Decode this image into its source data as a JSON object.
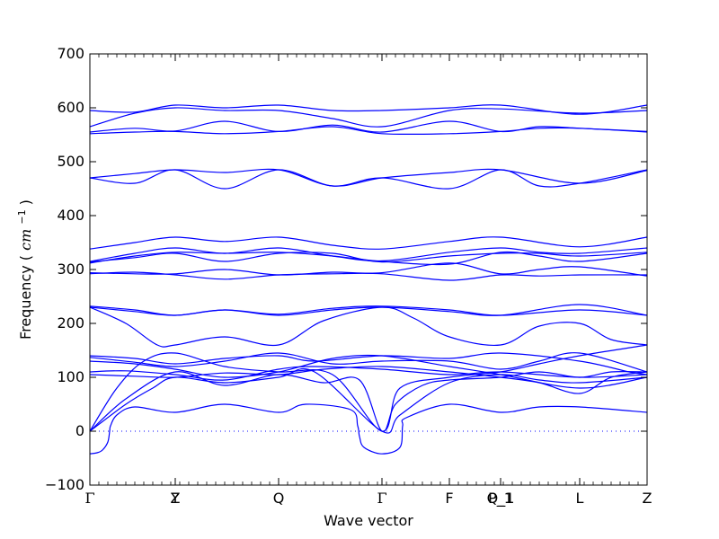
{
  "chart_data": {
    "type": "line",
    "title": "",
    "xlabel": "Wave vector",
    "ylabel": "Frequency",
    "ylabel_unit_base": "cm",
    "ylabel_unit_exp": "−1",
    "ylim": [
      -100,
      700
    ],
    "yticks": [
      -100,
      0,
      100,
      200,
      300,
      400,
      500,
      600,
      700
    ],
    "xlim": [
      0,
      620
    ],
    "high_symmetry_points": [
      {
        "label": "Γ",
        "x": 0
      },
      {
        "label": "Z",
        "x": 95
      },
      {
        "label": "Y",
        "x": 95
      },
      {
        "label": "Q",
        "x": 210
      },
      {
        "label": "Γ",
        "x": 325
      },
      {
        "label": "F",
        "x": 400
      },
      {
        "label": "P_1",
        "x": 457
      },
      {
        "label": "Q_1",
        "x": 457
      },
      {
        "label": "L",
        "x": 545
      },
      {
        "label": "Z",
        "x": 620
      }
    ],
    "zero_line": 0,
    "line_color": "#0000ff",
    "series": [
      {
        "values": [
          [
            0,
            -42
          ],
          [
            8,
            -40
          ],
          [
            14,
            -35
          ],
          [
            20,
            -20
          ],
          [
            22,
            0
          ],
          [
            23,
            10
          ],
          [
            30,
            30
          ],
          [
            50,
            45
          ],
          [
            95,
            35
          ],
          [
            150,
            50
          ],
          [
            210,
            35
          ],
          [
            240,
            50
          ],
          [
            290,
            40
          ],
          [
            298,
            10
          ],
          [
            300,
            -10
          ],
          [
            305,
            -30
          ],
          [
            325,
            -42
          ],
          [
            345,
            -30
          ],
          [
            348,
            10
          ],
          [
            352,
            25
          ],
          [
            400,
            50
          ],
          [
            457,
            35
          ],
          [
            500,
            45
          ],
          [
            545,
            45
          ],
          [
            620,
            35
          ]
        ]
      },
      {
        "values": [
          [
            0,
            0
          ],
          [
            40,
            50
          ],
          [
            70,
            80
          ],
          [
            95,
            100
          ],
          [
            150,
            90
          ],
          [
            210,
            100
          ],
          [
            250,
            110
          ],
          [
            325,
            0
          ],
          [
            345,
            30
          ],
          [
            400,
            90
          ],
          [
            457,
            105
          ],
          [
            500,
            95
          ],
          [
            545,
            90
          ],
          [
            620,
            100
          ]
        ]
      },
      {
        "values": [
          [
            0,
            0
          ],
          [
            40,
            60
          ],
          [
            95,
            110
          ],
          [
            150,
            85
          ],
          [
            210,
            105
          ],
          [
            260,
            90
          ],
          [
            300,
            95
          ],
          [
            325,
            0
          ],
          [
            340,
            50
          ],
          [
            370,
            85
          ],
          [
            400,
            95
          ],
          [
            457,
            100
          ],
          [
            500,
            110
          ],
          [
            545,
            100
          ],
          [
            580,
            110
          ],
          [
            620,
            110
          ]
        ]
      },
      {
        "values": [
          [
            0,
            0
          ],
          [
            30,
            80
          ],
          [
            60,
            130
          ],
          [
            95,
            145
          ],
          [
            150,
            120
          ],
          [
            210,
            110
          ],
          [
            270,
            105
          ],
          [
            325,
            0
          ],
          [
            345,
            80
          ],
          [
            400,
            100
          ],
          [
            457,
            110
          ],
          [
            500,
            125
          ],
          [
            545,
            140
          ],
          [
            620,
            160
          ]
        ]
      },
      {
        "values": [
          [
            0,
            105
          ],
          [
            50,
            102
          ],
          [
            95,
            100
          ],
          [
            150,
            108
          ],
          [
            210,
            105
          ],
          [
            260,
            115
          ],
          [
            325,
            120
          ],
          [
            400,
            110
          ],
          [
            457,
            100
          ],
          [
            500,
            90
          ],
          [
            545,
            70
          ],
          [
            580,
            100
          ],
          [
            620,
            110
          ]
        ]
      },
      {
        "values": [
          [
            0,
            110
          ],
          [
            40,
            112
          ],
          [
            95,
            105
          ],
          [
            150,
            95
          ],
          [
            210,
            115
          ],
          [
            250,
            120
          ],
          [
            325,
            115
          ],
          [
            400,
            105
          ],
          [
            457,
            110
          ],
          [
            545,
            100
          ],
          [
            620,
            105
          ]
        ]
      },
      {
        "values": [
          [
            0,
            130
          ],
          [
            50,
            125
          ],
          [
            95,
            115
          ],
          [
            150,
            100
          ],
          [
            210,
            110
          ],
          [
            270,
            135
          ],
          [
            325,
            140
          ],
          [
            400,
            120
          ],
          [
            457,
            105
          ],
          [
            545,
            80
          ],
          [
            620,
            100
          ]
        ]
      },
      {
        "values": [
          [
            0,
            137
          ],
          [
            50,
            128
          ],
          [
            95,
            120
          ],
          [
            150,
            130
          ],
          [
            210,
            145
          ],
          [
            270,
            125
          ],
          [
            325,
            130
          ],
          [
            400,
            130
          ],
          [
            457,
            115
          ],
          [
            500,
            130
          ],
          [
            545,
            145
          ],
          [
            620,
            110
          ]
        ]
      },
      {
        "values": [
          [
            0,
            140
          ],
          [
            50,
            135
          ],
          [
            95,
            125
          ],
          [
            150,
            135
          ],
          [
            210,
            140
          ],
          [
            250,
            130
          ],
          [
            325,
            140
          ],
          [
            400,
            135
          ],
          [
            457,
            145
          ],
          [
            545,
            130
          ],
          [
            600,
            110
          ],
          [
            620,
            105
          ]
        ]
      },
      {
        "values": [
          [
            0,
            230
          ],
          [
            40,
            200
          ],
          [
            75,
            160
          ],
          [
            95,
            160
          ],
          [
            150,
            175
          ],
          [
            210,
            160
          ],
          [
            260,
            205
          ],
          [
            325,
            230
          ],
          [
            360,
            210
          ],
          [
            400,
            175
          ],
          [
            457,
            160
          ],
          [
            500,
            195
          ],
          [
            545,
            200
          ],
          [
            580,
            170
          ],
          [
            620,
            160
          ]
        ]
      },
      {
        "values": [
          [
            0,
            230
          ],
          [
            50,
            222
          ],
          [
            95,
            215
          ],
          [
            150,
            225
          ],
          [
            210,
            215
          ],
          [
            270,
            225
          ],
          [
            325,
            230
          ],
          [
            400,
            222
          ],
          [
            457,
            215
          ],
          [
            545,
            235
          ],
          [
            620,
            215
          ]
        ]
      },
      {
        "values": [
          [
            0,
            232
          ],
          [
            50,
            225
          ],
          [
            95,
            215
          ],
          [
            150,
            225
          ],
          [
            210,
            217
          ],
          [
            270,
            228
          ],
          [
            325,
            232
          ],
          [
            400,
            225
          ],
          [
            457,
            215
          ],
          [
            545,
            225
          ],
          [
            620,
            215
          ]
        ]
      },
      {
        "values": [
          [
            0,
            292
          ],
          [
            50,
            295
          ],
          [
            95,
            290
          ],
          [
            150,
            282
          ],
          [
            210,
            290
          ],
          [
            270,
            292
          ],
          [
            325,
            292
          ],
          [
            400,
            280
          ],
          [
            457,
            290
          ],
          [
            500,
            288
          ],
          [
            545,
            290
          ],
          [
            620,
            290
          ]
        ]
      },
      {
        "values": [
          [
            0,
            294
          ],
          [
            50,
            292
          ],
          [
            95,
            292
          ],
          [
            150,
            300
          ],
          [
            210,
            290
          ],
          [
            270,
            295
          ],
          [
            325,
            294
          ],
          [
            400,
            312
          ],
          [
            457,
            292
          ],
          [
            500,
            300
          ],
          [
            545,
            305
          ],
          [
            620,
            288
          ]
        ]
      },
      {
        "values": [
          [
            0,
            312
          ],
          [
            50,
            325
          ],
          [
            95,
            332
          ],
          [
            150,
            330
          ],
          [
            210,
            332
          ],
          [
            270,
            325
          ],
          [
            325,
            315
          ],
          [
            400,
            310
          ],
          [
            457,
            332
          ],
          [
            500,
            325
          ],
          [
            545,
            315
          ],
          [
            620,
            330
          ]
        ]
      },
      {
        "values": [
          [
            0,
            314
          ],
          [
            50,
            322
          ],
          [
            95,
            330
          ],
          [
            150,
            315
          ],
          [
            210,
            330
          ],
          [
            270,
            330
          ],
          [
            325,
            314
          ],
          [
            400,
            325
          ],
          [
            457,
            330
          ],
          [
            500,
            330
          ],
          [
            545,
            325
          ],
          [
            620,
            332
          ]
        ]
      },
      {
        "values": [
          [
            0,
            315
          ],
          [
            50,
            330
          ],
          [
            95,
            340
          ],
          [
            150,
            330
          ],
          [
            210,
            340
          ],
          [
            270,
            325
          ],
          [
            325,
            316
          ],
          [
            400,
            332
          ],
          [
            457,
            340
          ],
          [
            500,
            332
          ],
          [
            545,
            330
          ],
          [
            620,
            340
          ]
        ]
      },
      {
        "values": [
          [
            0,
            338
          ],
          [
            50,
            350
          ],
          [
            95,
            360
          ],
          [
            150,
            352
          ],
          [
            210,
            360
          ],
          [
            270,
            345
          ],
          [
            325,
            338
          ],
          [
            400,
            352
          ],
          [
            457,
            360
          ],
          [
            545,
            342
          ],
          [
            620,
            360
          ]
        ]
      },
      {
        "values": [
          [
            0,
            470
          ],
          [
            50,
            460
          ],
          [
            95,
            485
          ],
          [
            150,
            450
          ],
          [
            210,
            485
          ],
          [
            270,
            455
          ],
          [
            325,
            470
          ],
          [
            400,
            450
          ],
          [
            457,
            485
          ],
          [
            500,
            455
          ],
          [
            545,
            460
          ],
          [
            620,
            485
          ]
        ]
      },
      {
        "values": [
          [
            0,
            470
          ],
          [
            50,
            478
          ],
          [
            95,
            485
          ],
          [
            150,
            480
          ],
          [
            210,
            485
          ],
          [
            270,
            455
          ],
          [
            325,
            470
          ],
          [
            400,
            480
          ],
          [
            457,
            485
          ],
          [
            545,
            460
          ],
          [
            620,
            484
          ]
        ]
      },
      {
        "values": [
          [
            0,
            552
          ],
          [
            50,
            555
          ],
          [
            95,
            556
          ],
          [
            150,
            552
          ],
          [
            210,
            556
          ],
          [
            270,
            565
          ],
          [
            325,
            552
          ],
          [
            400,
            552
          ],
          [
            457,
            556
          ],
          [
            500,
            562
          ],
          [
            545,
            562
          ],
          [
            620,
            555
          ]
        ]
      },
      {
        "values": [
          [
            0,
            555
          ],
          [
            50,
            562
          ],
          [
            95,
            557
          ],
          [
            150,
            575
          ],
          [
            210,
            556
          ],
          [
            270,
            568
          ],
          [
            325,
            555
          ],
          [
            400,
            575
          ],
          [
            457,
            556
          ],
          [
            500,
            565
          ],
          [
            545,
            562
          ],
          [
            620,
            556
          ]
        ]
      },
      {
        "values": [
          [
            0,
            565
          ],
          [
            50,
            590
          ],
          [
            95,
            600
          ],
          [
            150,
            595
          ],
          [
            210,
            595
          ],
          [
            270,
            580
          ],
          [
            325,
            565
          ],
          [
            400,
            595
          ],
          [
            457,
            598
          ],
          [
            545,
            590
          ],
          [
            620,
            595
          ]
        ]
      },
      {
        "values": [
          [
            0,
            595
          ],
          [
            50,
            592
          ],
          [
            95,
            605
          ],
          [
            150,
            600
          ],
          [
            210,
            605
          ],
          [
            270,
            595
          ],
          [
            325,
            595
          ],
          [
            400,
            600
          ],
          [
            457,
            605
          ],
          [
            545,
            588
          ],
          [
            620,
            605
          ]
        ]
      }
    ]
  }
}
